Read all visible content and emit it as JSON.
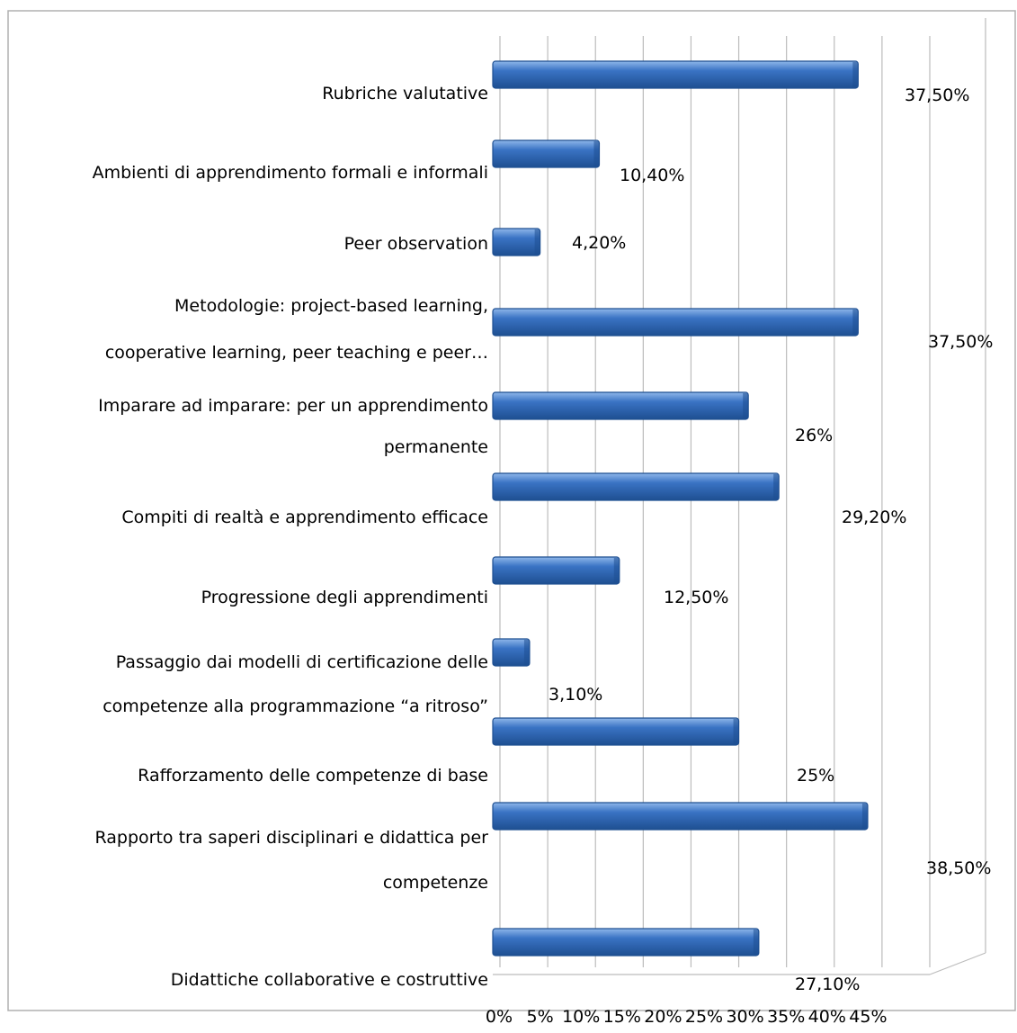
{
  "chart_data": {
    "type": "bar",
    "orientation": "horizontal",
    "style": "3d",
    "legend": "none",
    "grid": true,
    "xlim": [
      0,
      45
    ],
    "x_ticks": [
      0,
      5,
      10,
      15,
      20,
      25,
      30,
      35,
      40,
      45
    ],
    "x_tick_labels": [
      "0%",
      "5%",
      "10%",
      "15%",
      "20%",
      "25%",
      "30%",
      "35%",
      "40%",
      "45%"
    ],
    "categories": [
      [
        "Rubriche valutative"
      ],
      [
        "Ambienti di apprendimento formali e informali"
      ],
      [
        "Peer observation"
      ],
      [
        "Metodologie: project-based learning,",
        "cooperative learning, peer teaching e peer…"
      ],
      [
        "Imparare ad imparare: per un apprendimento",
        "permanente"
      ],
      [
        "Compiti di realtà e apprendimento efficace"
      ],
      [
        "Progressione degli apprendimenti"
      ],
      [
        "Passaggio dai modelli di certificazione delle",
        "competenze alla programmazione “a ritroso”"
      ],
      [
        "Rafforzamento delle competenze di base"
      ],
      [
        "Rapporto tra saperi disciplinari e didattica per",
        "competenze"
      ],
      [
        "Didattiche collaborative e costruttive"
      ]
    ],
    "values": [
      37.5,
      10.4,
      4.2,
      37.5,
      26,
      29.2,
      12.5,
      3.1,
      25,
      38.5,
      27.1
    ],
    "value_labels": [
      "37,50%",
      "10,40%",
      "4,20%",
      "37,50%",
      "26%",
      "29,20%",
      "12,50%",
      "3,10%",
      "25%",
      "38,50%",
      "27,10%"
    ],
    "bar_color": "#3a73c4",
    "bar_highlight_color": "#8fb7ea",
    "bar_edge_color": "#1e4f91",
    "grid_color": "#bcbcbc",
    "frame_color": "#b0b0b0"
  }
}
